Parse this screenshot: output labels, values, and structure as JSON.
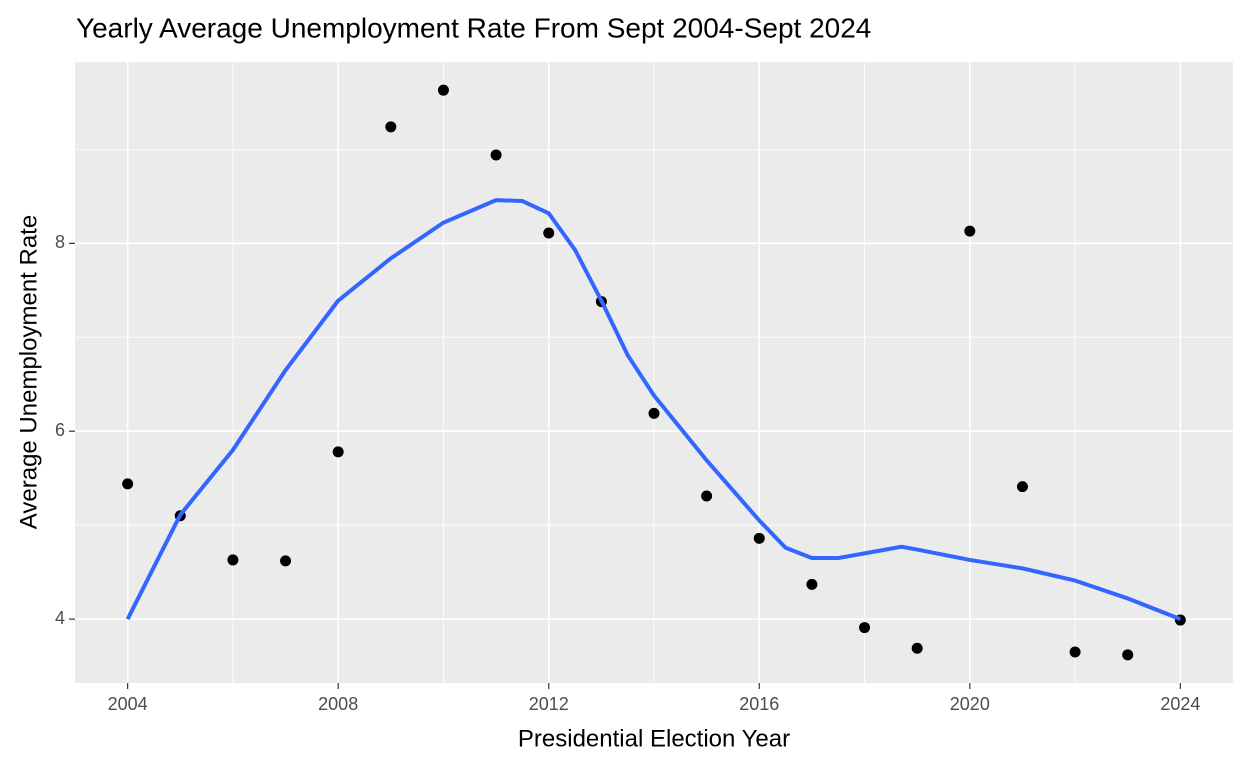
{
  "chart_data": {
    "type": "scatter",
    "title": "Yearly Average Unemployment Rate From Sept 2004-Sept 2024",
    "x_label": "Presidential Election Year",
    "y_label": "Average Unemployment Rate",
    "xlim": [
      2003,
      2025
    ],
    "xticks": [
      2004,
      2008,
      2012,
      2016,
      2020,
      2024
    ],
    "ylim": [
      3.32,
      9.93
    ],
    "yticks": [
      4,
      6,
      8
    ],
    "grid": true,
    "minor_grid": true,
    "series": [
      {
        "type": "scatter",
        "color": "#000000",
        "x": [
          2004,
          2005,
          2006,
          2007,
          2008,
          2009,
          2010,
          2011,
          2012,
          2013,
          2014,
          2015,
          2016,
          2017,
          2018,
          2019,
          2020,
          2021,
          2022,
          2023,
          2024
        ],
        "values": [
          5.44,
          5.1,
          4.63,
          4.62,
          5.78,
          9.24,
          9.63,
          8.94,
          8.11,
          7.38,
          6.19,
          5.31,
          4.86,
          4.37,
          3.91,
          3.69,
          8.13,
          5.41,
          3.65,
          3.62,
          3.99
        ]
      },
      {
        "type": "line",
        "color": "#3366ff",
        "x": [
          2004,
          2005,
          2006,
          2007,
          2008,
          2009,
          2010,
          2011,
          2011.5,
          2012,
          2012.5,
          2013,
          2013.5,
          2014,
          2015,
          2016,
          2016.5,
          2017,
          2017.5,
          2018,
          2018.7,
          2019,
          2020,
          2021,
          2022,
          2023,
          2024
        ],
        "values": [
          4.0,
          5.11,
          5.8,
          6.65,
          7.39,
          7.84,
          8.22,
          8.46,
          8.45,
          8.32,
          7.93,
          7.39,
          6.81,
          6.38,
          5.69,
          5.05,
          4.76,
          4.65,
          4.65,
          4.7,
          4.77,
          4.74,
          4.63,
          4.54,
          4.41,
          4.22,
          4.0
        ]
      }
    ]
  }
}
